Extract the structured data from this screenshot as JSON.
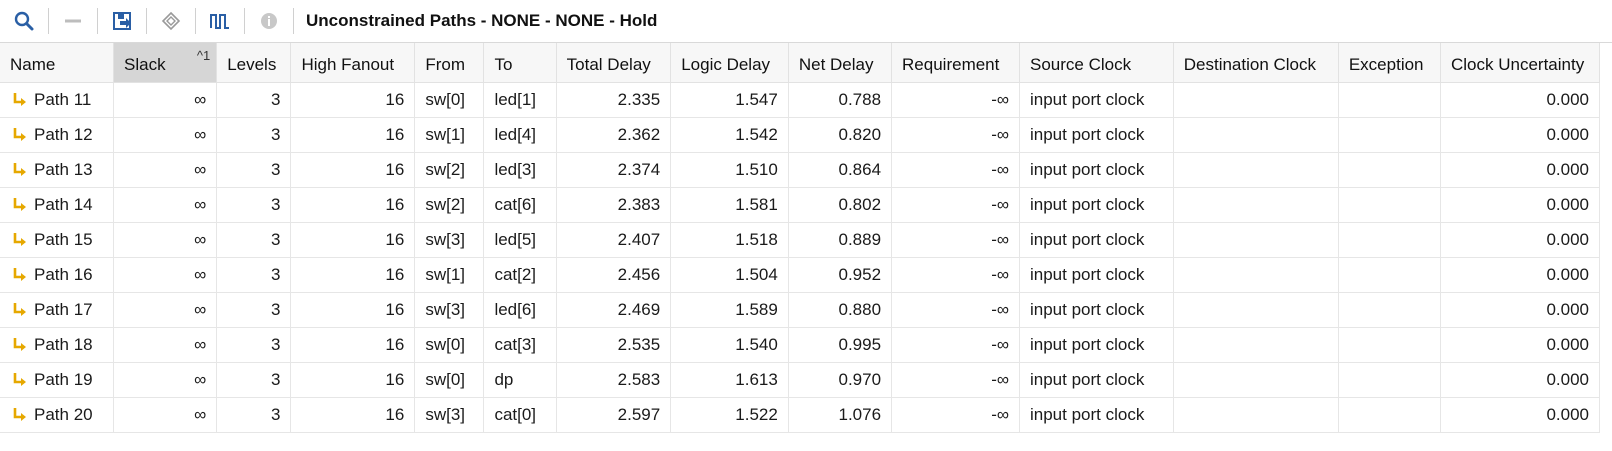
{
  "toolbar": {
    "title": "Unconstrained Paths - NONE - NONE - Hold",
    "buttons": [
      "search-icon",
      "collapse-icon",
      "export-icon",
      "diamond-icon",
      "waveform-icon",
      "info-icon"
    ]
  },
  "table": {
    "columns": [
      "Name",
      "Slack",
      "Levels",
      "High Fanout",
      "From",
      "To",
      "Total Delay",
      "Logic Delay",
      "Net Delay",
      "Requirement",
      "Source Clock",
      "Destination Clock",
      "Exception",
      "Clock Uncertainty"
    ],
    "sort_indicator": "^1",
    "sorted_column": "Slack",
    "rows": [
      {
        "name": "Path 11",
        "slack": "∞",
        "levels": "3",
        "fanout": "16",
        "from": "sw[0]",
        "to": "led[1]",
        "total": "2.335",
        "logic": "1.547",
        "net": "0.788",
        "req": "-∞",
        "src": "input port clock",
        "dst": "",
        "exc": "",
        "unc": "0.000"
      },
      {
        "name": "Path 12",
        "slack": "∞",
        "levels": "3",
        "fanout": "16",
        "from": "sw[1]",
        "to": "led[4]",
        "total": "2.362",
        "logic": "1.542",
        "net": "0.820",
        "req": "-∞",
        "src": "input port clock",
        "dst": "",
        "exc": "",
        "unc": "0.000"
      },
      {
        "name": "Path 13",
        "slack": "∞",
        "levels": "3",
        "fanout": "16",
        "from": "sw[2]",
        "to": "led[3]",
        "total": "2.374",
        "logic": "1.510",
        "net": "0.864",
        "req": "-∞",
        "src": "input port clock",
        "dst": "",
        "exc": "",
        "unc": "0.000"
      },
      {
        "name": "Path 14",
        "slack": "∞",
        "levels": "3",
        "fanout": "16",
        "from": "sw[2]",
        "to": "cat[6]",
        "total": "2.383",
        "logic": "1.581",
        "net": "0.802",
        "req": "-∞",
        "src": "input port clock",
        "dst": "",
        "exc": "",
        "unc": "0.000"
      },
      {
        "name": "Path 15",
        "slack": "∞",
        "levels": "3",
        "fanout": "16",
        "from": "sw[3]",
        "to": "led[5]",
        "total": "2.407",
        "logic": "1.518",
        "net": "0.889",
        "req": "-∞",
        "src": "input port clock",
        "dst": "",
        "exc": "",
        "unc": "0.000"
      },
      {
        "name": "Path 16",
        "slack": "∞",
        "levels": "3",
        "fanout": "16",
        "from": "sw[1]",
        "to": "cat[2]",
        "total": "2.456",
        "logic": "1.504",
        "net": "0.952",
        "req": "-∞",
        "src": "input port clock",
        "dst": "",
        "exc": "",
        "unc": "0.000"
      },
      {
        "name": "Path 17",
        "slack": "∞",
        "levels": "3",
        "fanout": "16",
        "from": "sw[3]",
        "to": "led[6]",
        "total": "2.469",
        "logic": "1.589",
        "net": "0.880",
        "req": "-∞",
        "src": "input port clock",
        "dst": "",
        "exc": "",
        "unc": "0.000"
      },
      {
        "name": "Path 18",
        "slack": "∞",
        "levels": "3",
        "fanout": "16",
        "from": "sw[0]",
        "to": "cat[3]",
        "total": "2.535",
        "logic": "1.540",
        "net": "0.995",
        "req": "-∞",
        "src": "input port clock",
        "dst": "",
        "exc": "",
        "unc": "0.000"
      },
      {
        "name": "Path 19",
        "slack": "∞",
        "levels": "3",
        "fanout": "16",
        "from": "sw[0]",
        "to": "dp",
        "total": "2.583",
        "logic": "1.613",
        "net": "0.970",
        "req": "-∞",
        "src": "input port clock",
        "dst": "",
        "exc": "",
        "unc": "0.000"
      },
      {
        "name": "Path 20",
        "slack": "∞",
        "levels": "3",
        "fanout": "16",
        "from": "sw[3]",
        "to": "cat[0]",
        "total": "2.597",
        "logic": "1.522",
        "net": "1.076",
        "req": "-∞",
        "src": "input port clock",
        "dst": "",
        "exc": "",
        "unc": "0.000"
      }
    ]
  },
  "colors": {
    "accent_blue": "#2a5fa5",
    "path_icon": "#e6a800",
    "sorted_header_bg": "#d6d6d6"
  }
}
